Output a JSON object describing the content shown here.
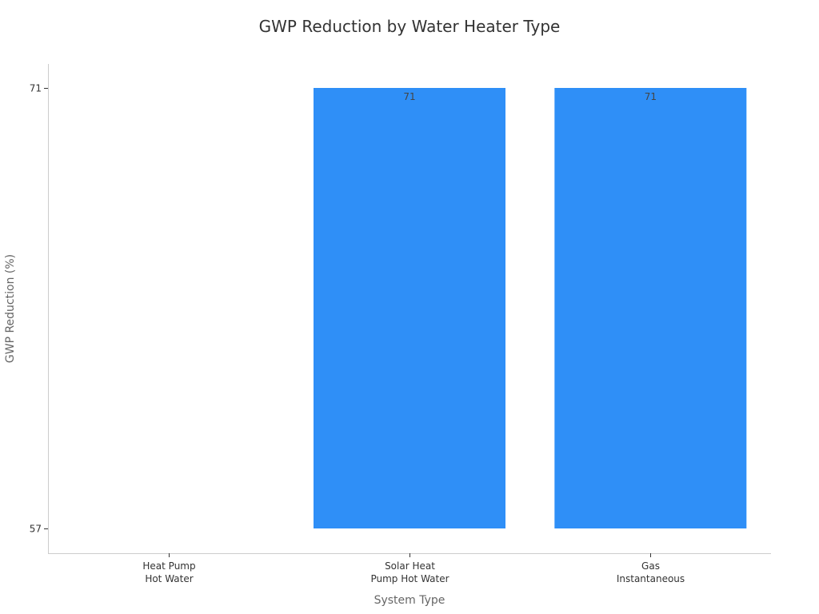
{
  "chart_data": {
    "type": "bar",
    "title": "GWP Reduction by Water Heater Type",
    "xlabel": "System Type",
    "ylabel": "GWP Reduction (%)",
    "categories": [
      [
        "Heat Pump",
        "Hot Water"
      ],
      [
        "Solar Heat",
        "Pump Hot Water"
      ],
      [
        "Gas",
        "Instantaneous"
      ]
    ],
    "values": [
      57,
      71,
      71
    ],
    "data_labels": [
      "",
      "71",
      "71"
    ],
    "ylim": [
      57,
      71
    ],
    "y_ticks": [
      57,
      71
    ],
    "bar_color": "#2f8ff7",
    "grid": false,
    "legend": "none"
  }
}
